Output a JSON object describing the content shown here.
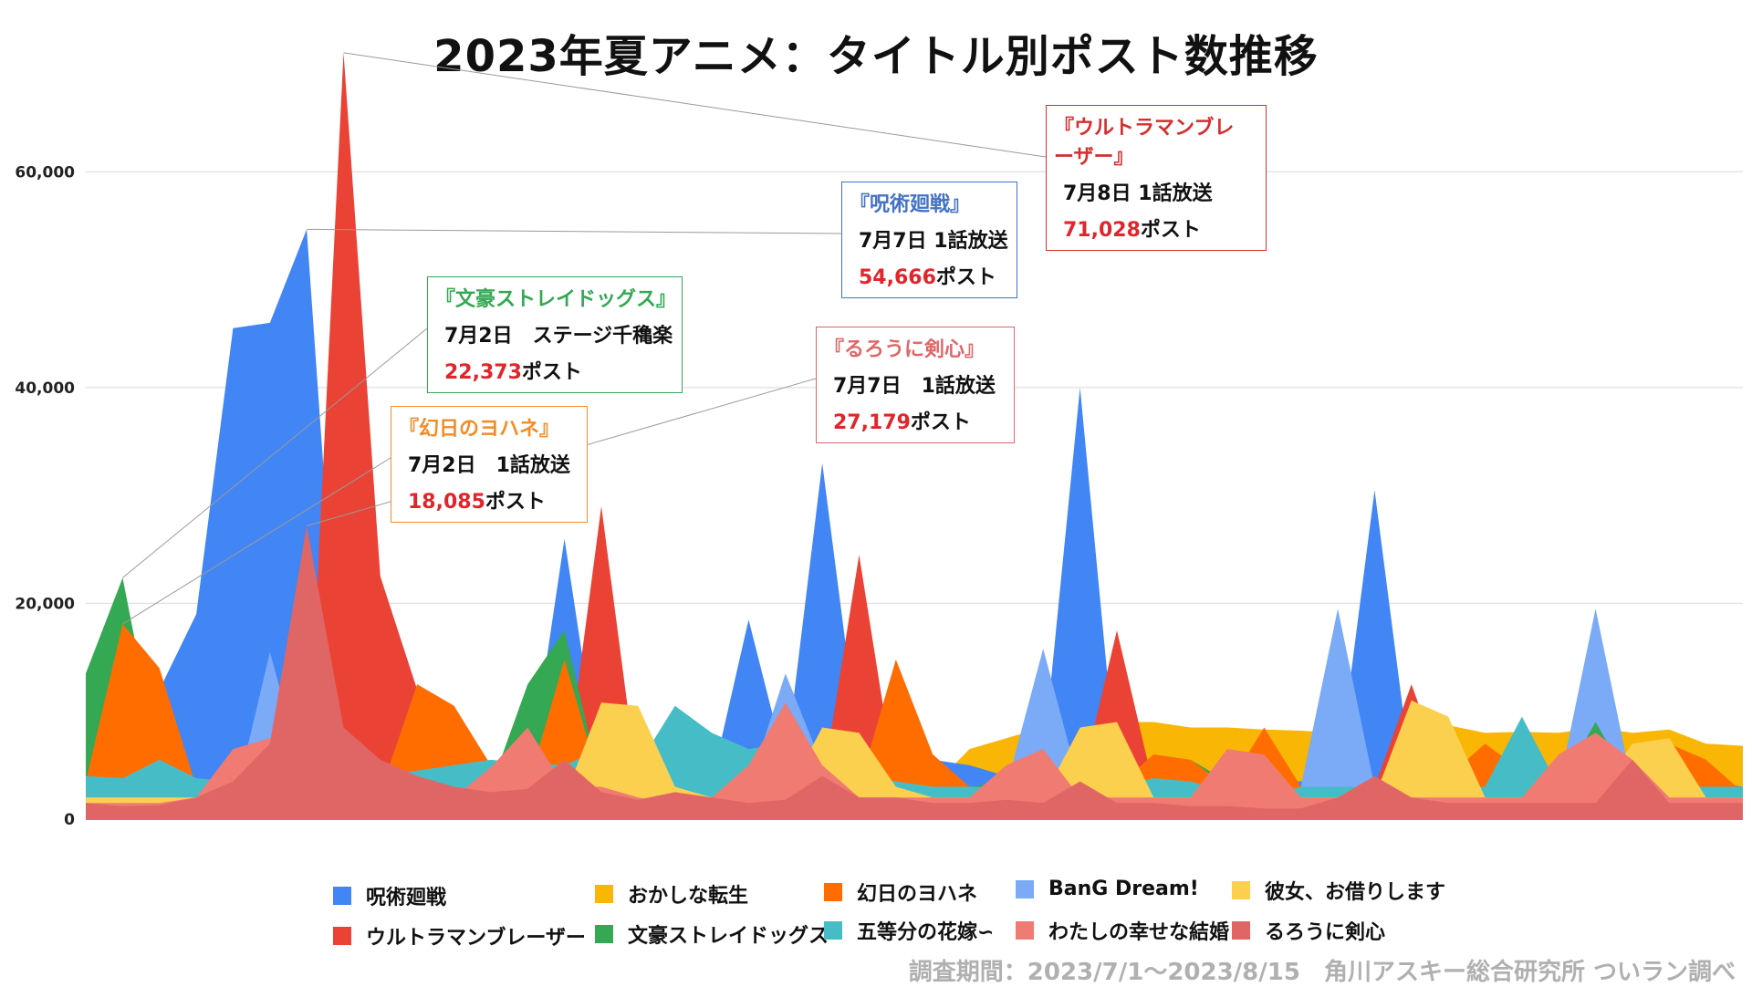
{
  "chart_data": {
    "type": "area",
    "title": "2023年夏アニメ：タイトル別ポスト数推移",
    "xlabel": "",
    "ylabel": "",
    "ylim": [
      0,
      70000
    ],
    "yticks": [
      0,
      20000,
      40000,
      60000
    ],
    "ytick_labels": [
      "0",
      "20,000",
      "40,000",
      "60,000"
    ],
    "grid": true,
    "x": {
      "start": "2023/7/1",
      "end": "2023/8/15",
      "count": 46
    },
    "series": [
      {
        "name": "おかしな転生",
        "color": "#f9b605",
        "values": [
          3000,
          3000,
          3000,
          3000,
          3000,
          3000,
          3000,
          3000,
          11000,
          4000,
          4000,
          4000,
          4000,
          2500,
          2500,
          3000,
          3000,
          3000,
          3000,
          3000,
          3000,
          3000,
          3000,
          3000,
          6500,
          7500,
          8500,
          8500,
          9000,
          9000,
          8500,
          8500,
          8300,
          8200,
          8000,
          8000,
          9000,
          8700,
          8000,
          8100,
          8000,
          8500,
          8000,
          8300,
          7000,
          6800
        ]
      },
      {
        "name": "呪術廻戦",
        "color": "#4285f4",
        "values": [
          3000,
          3000,
          12000,
          19000,
          45500,
          46000,
          54666,
          6000,
          4000,
          4000,
          4000,
          4000,
          3000,
          26000,
          3500,
          3000,
          4000,
          3500,
          18500,
          5000,
          33000,
          6500,
          4000,
          5500,
          5000,
          4000,
          5500,
          40000,
          4000,
          5000,
          3500,
          3500,
          3500,
          3500,
          4000,
          30500,
          4000,
          3500,
          3500,
          4000,
          3000,
          3500,
          3500,
          3500,
          3500,
          3000
        ]
      },
      {
        "name": "ウルトラマンブレーザー",
        "color": "#ea4335",
        "values": [
          2000,
          2000,
          2000,
          2000,
          2000,
          2000,
          2000,
          71028,
          22500,
          12000,
          5000,
          3000,
          3000,
          3000,
          29000,
          3000,
          3000,
          3000,
          3000,
          3000,
          3000,
          24500,
          3000,
          3000,
          3000,
          3000,
          3000,
          3000,
          17500,
          3000,
          3000,
          3000,
          3000,
          3000,
          3000,
          3000,
          12500,
          3000,
          3000,
          3000,
          3000,
          3000,
          3000,
          3000,
          3000,
          3000
        ]
      },
      {
        "name": "BanG Dream!",
        "color": "#7baaf7",
        "values": [
          1000,
          1000,
          1000,
          1000,
          1000,
          15500,
          3000,
          3000,
          3000,
          3000,
          3000,
          3000,
          3000,
          3000,
          3000,
          3000,
          3000,
          3000,
          3000,
          13500,
          5000,
          3000,
          3000,
          3000,
          3000,
          3000,
          15800,
          3000,
          3000,
          3000,
          3000,
          3000,
          3000,
          3000,
          19500,
          3000,
          3000,
          3000,
          3000,
          3000,
          3000,
          19500,
          3000,
          3000,
          3000,
          3000
        ]
      },
      {
        "name": "文豪ストレイドッグス",
        "color": "#34a853",
        "values": [
          13500,
          22373,
          5000,
          3000,
          3000,
          3000,
          3000,
          3000,
          3000,
          3000,
          3000,
          3000,
          12500,
          17500,
          3000,
          3000,
          3000,
          3000,
          3000,
          3000,
          3000,
          3000,
          3000,
          3000,
          3000,
          3500,
          3000,
          3000,
          3000,
          3000,
          5500,
          3500,
          3000,
          3000,
          3000,
          3000,
          3000,
          3000,
          3000,
          3000,
          3000,
          9000,
          3000,
          3000,
          3000,
          3000
        ]
      },
      {
        "name": "幻日のヨハネ",
        "color": "#ff6d00",
        "values": [
          3500,
          18085,
          14000,
          3000,
          2500,
          2500,
          2500,
          2500,
          2500,
          12500,
          10500,
          5000,
          3000,
          14800,
          3000,
          3000,
          7500,
          7500,
          4000,
          3000,
          3000,
          3000,
          14800,
          6000,
          3000,
          3000,
          3000,
          3000,
          3000,
          6000,
          5500,
          3000,
          8500,
          3000,
          3000,
          3000,
          3000,
          4000,
          7000,
          4500,
          3000,
          3000,
          3000,
          7000,
          5500,
          2500
        ]
      },
      {
        "name": "五等分の花嫁∽",
        "color": "#46bdc6",
        "values": [
          4000,
          3800,
          5500,
          3800,
          3500,
          3500,
          3500,
          3500,
          4000,
          4500,
          5000,
          5500,
          5200,
          5000,
          6500,
          5000,
          10500,
          8000,
          6500,
          7000,
          5500,
          4000,
          3500,
          3000,
          3000,
          3000,
          3000,
          3000,
          3000,
          3800,
          3500,
          2500,
          2000,
          3000,
          3000,
          3000,
          3000,
          3000,
          3000,
          9500,
          3000,
          3000,
          3000,
          3000,
          3000,
          3000
        ]
      },
      {
        "name": "彼女、お借りします",
        "color": "#fcd04f",
        "values": [
          2000,
          2000,
          2000,
          2000,
          2000,
          2000,
          2000,
          2000,
          2000,
          2000,
          2000,
          2000,
          2000,
          2000,
          10800,
          10500,
          3000,
          2000,
          2000,
          2000,
          8500,
          8000,
          3000,
          2000,
          2000,
          2000,
          2000,
          8500,
          9000,
          2000,
          2000,
          2000,
          2000,
          2000,
          2000,
          2000,
          11000,
          9500,
          2000,
          2000,
          2000,
          2000,
          7000,
          7500,
          2000,
          2000
        ]
      },
      {
        "name": "わたしの幸せな結婚",
        "color": "#f07b72",
        "values": [
          1500,
          1500,
          1500,
          2000,
          6500,
          7500,
          8000,
          6000,
          4500,
          3000,
          2000,
          4800,
          8500,
          3000,
          3000,
          2000,
          1500,
          2000,
          5000,
          10800,
          5000,
          2000,
          2000,
          2000,
          2000,
          5000,
          6500,
          2000,
          2000,
          2000,
          2000,
          6500,
          6000,
          2000,
          2000,
          2000,
          2000,
          2000,
          2000,
          2000,
          6000,
          8000,
          5500,
          2000,
          2000,
          2000
        ]
      },
      {
        "name": "るろうに剣心",
        "color": "#e06666",
        "values": [
          1500,
          1200,
          1300,
          2000,
          3500,
          7000,
          27179,
          8500,
          5500,
          4000,
          3000,
          2500,
          2800,
          5500,
          2500,
          1800,
          2500,
          2000,
          1500,
          1800,
          4000,
          2000,
          2000,
          1500,
          1500,
          1800,
          1500,
          3500,
          1500,
          1500,
          1200,
          1200,
          1000,
          1000,
          2000,
          4000,
          2000,
          1500,
          1500,
          1500,
          1500,
          1500,
          5500,
          1500,
          1500,
          1500
        ]
      }
    ],
    "annotations": [
      {
        "title": "『ウルトラマンブレーザー』",
        "event": "7月8日 1話放送",
        "count": "71,028",
        "count_suffix": "ポスト",
        "color": "#d32f2f"
      },
      {
        "title": "『呪術廻戦』",
        "event": "7月7日 1話放送",
        "count": "54,666",
        "count_suffix": "ポスト",
        "color": "#4472c4"
      },
      {
        "title": "『文豪ストレイドッグス』",
        "event": "7月2日　ステージ千穐楽",
        "count": "22,373",
        "count_suffix": "ポスト",
        "color": "#34a853"
      },
      {
        "title": "『るろうに剣心』",
        "event": "7月7日　1話放送",
        "count": "27,179",
        "count_suffix": "ポスト",
        "color": "#e06666"
      },
      {
        "title": "『幻日のヨハネ』",
        "event": "7月2日　1話放送",
        "count": "18,085",
        "count_suffix": "ポスト",
        "color": "#f28c28"
      }
    ],
    "legend": [
      "呪術廻戦",
      "おかしな転生",
      "幻日のヨハネ",
      "BanG Dream!",
      "彼女、お借りします",
      "ウルトラマンブレーザー",
      "文豪ストレイドッグス",
      "五等分の花嫁∽",
      "わたしの幸せな結婚",
      "るろうに剣心"
    ],
    "legend_position": "bottom"
  },
  "footnote": "調査期間：2023/7/1～2023/8/15　角川アスキー総合研究所 ついラン調べ"
}
